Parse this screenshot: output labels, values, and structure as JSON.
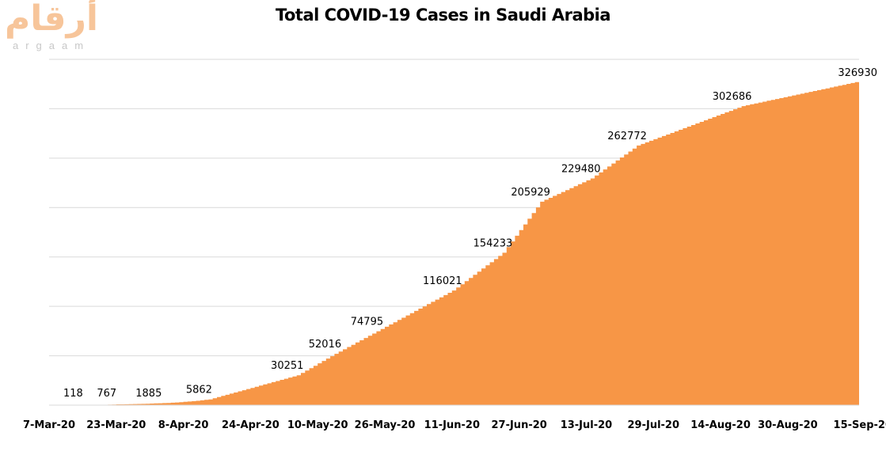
{
  "logo": {
    "arabic": "أرقام",
    "latin": "argaam"
  },
  "chart_data": {
    "type": "area",
    "title": "Total COVID-19 Cases in Saudi Arabia",
    "xlabel": "",
    "ylabel": "",
    "ylim": [
      0,
      350000
    ],
    "y_grid_step": 50000,
    "y_tick_labels_shown": false,
    "grid": true,
    "legend": "none",
    "color": "#F79646",
    "x_range": [
      "7-Mar-20",
      "15-Sep-20"
    ],
    "x_tick_labels": [
      "7-Mar-20",
      "23-Mar-20",
      "8-Apr-20",
      "24-Apr-20",
      "10-May-20",
      "26-May-20",
      "11-Jun-20",
      "27-Jun-20",
      "13-Jul-20",
      "29-Jul-20",
      "14-Aug-20",
      "30-Aug-20",
      "15-Sep-20"
    ],
    "points": [
      {
        "date": "7-Mar-20",
        "value": 5,
        "labeled": false
      },
      {
        "date": "15-Mar-20",
        "value": 118,
        "labeled": true
      },
      {
        "date": "23-Mar-20",
        "value": 767,
        "labeled": true
      },
      {
        "date": "2-Apr-20",
        "value": 1885,
        "labeled": true
      },
      {
        "date": "14-Apr-20",
        "value": 5862,
        "labeled": true
      },
      {
        "date": "5-May-20",
        "value": 30251,
        "labeled": true
      },
      {
        "date": "14-May-20",
        "value": 52016,
        "labeled": true
      },
      {
        "date": "24-May-20",
        "value": 74795,
        "labeled": true
      },
      {
        "date": "11-Jun-20",
        "value": 116021,
        "labeled": true
      },
      {
        "date": "23-Jun-20",
        "value": 154233,
        "labeled": true
      },
      {
        "date": "2-Jul-20",
        "value": 205929,
        "labeled": true
      },
      {
        "date": "14-Jul-20",
        "value": 229480,
        "labeled": true
      },
      {
        "date": "25-Jul-20",
        "value": 262772,
        "labeled": true
      },
      {
        "date": "19-Aug-20",
        "value": 302686,
        "labeled": true
      },
      {
        "date": "15-Sep-20",
        "value": 326930,
        "labeled": true
      }
    ]
  }
}
